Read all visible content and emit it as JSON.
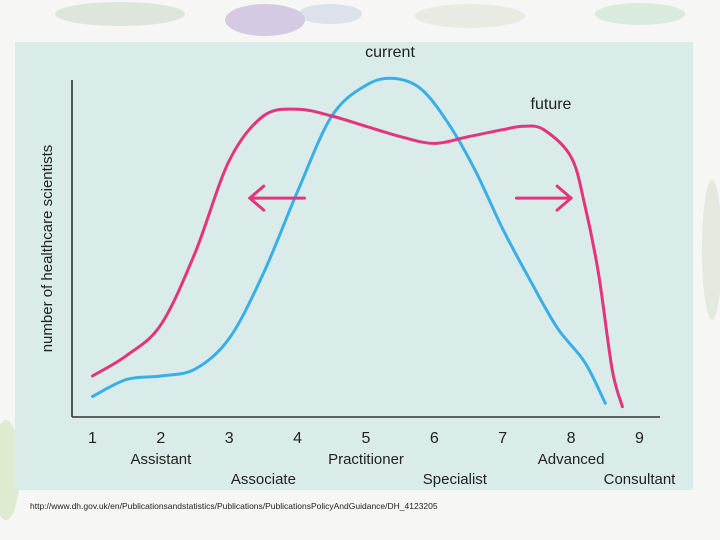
{
  "chart_data": {
    "type": "line",
    "title": "",
    "xlabel": "",
    "ylabel": "number of healthcare scientists",
    "x_ticks": [
      "1",
      "2",
      "3",
      "4",
      "5",
      "6",
      "7",
      "8",
      "9"
    ],
    "x_categories": [
      {
        "x": 2,
        "label": "Assistant",
        "row": 1
      },
      {
        "x": 3.5,
        "label": "Associate",
        "row": 2
      },
      {
        "x": 5,
        "label": "Practitioner",
        "row": 1
      },
      {
        "x": 6.3,
        "label": "Specialist",
        "row": 2
      },
      {
        "x": 8,
        "label": "Advanced",
        "row": 1
      },
      {
        "x": 9,
        "label": "Consultant",
        "row": 2
      }
    ],
    "xlim": [
      0.7,
      9.3
    ],
    "ylim": [
      0,
      100
    ],
    "grid": false,
    "series": [
      {
        "name": "current",
        "color": "#3aaee6",
        "x": [
          1,
          1.5,
          2,
          2.5,
          3,
          3.5,
          4,
          4.5,
          5,
          5.4,
          5.8,
          6.2,
          6.6,
          7,
          7.4,
          7.8,
          8.2,
          8.5
        ],
        "y": [
          6,
          11,
          12,
          14,
          23,
          42,
          66,
          88,
          97,
          99,
          96,
          86,
          72,
          55,
          40,
          26,
          16,
          4
        ]
      },
      {
        "name": "future",
        "color": "#e2357a",
        "x": [
          1,
          1.5,
          2,
          2.5,
          3,
          3.5,
          4,
          4.5,
          5,
          5.5,
          6,
          6.5,
          7,
          7.3,
          7.6,
          8,
          8.2,
          8.4,
          8.6,
          8.75
        ],
        "y": [
          12,
          18,
          27,
          48,
          75,
          88,
          90,
          88,
          85,
          82,
          80,
          82,
          84,
          85,
          84,
          76,
          62,
          42,
          14,
          3
        ]
      }
    ],
    "annotations": [
      {
        "type": "arrow",
        "direction": "left",
        "color": "#e2357a",
        "x": [
          3.3,
          4.1
        ],
        "y": 64
      },
      {
        "type": "arrow",
        "direction": "right",
        "color": "#e2357a",
        "x": [
          7.2,
          8.0
        ],
        "y": 64
      }
    ]
  },
  "source_url": "http://www.dh.gov.uk/en/Publicationsandstatistics/Publications/PublicationsPolicyAndGuidance/DH_4123205"
}
